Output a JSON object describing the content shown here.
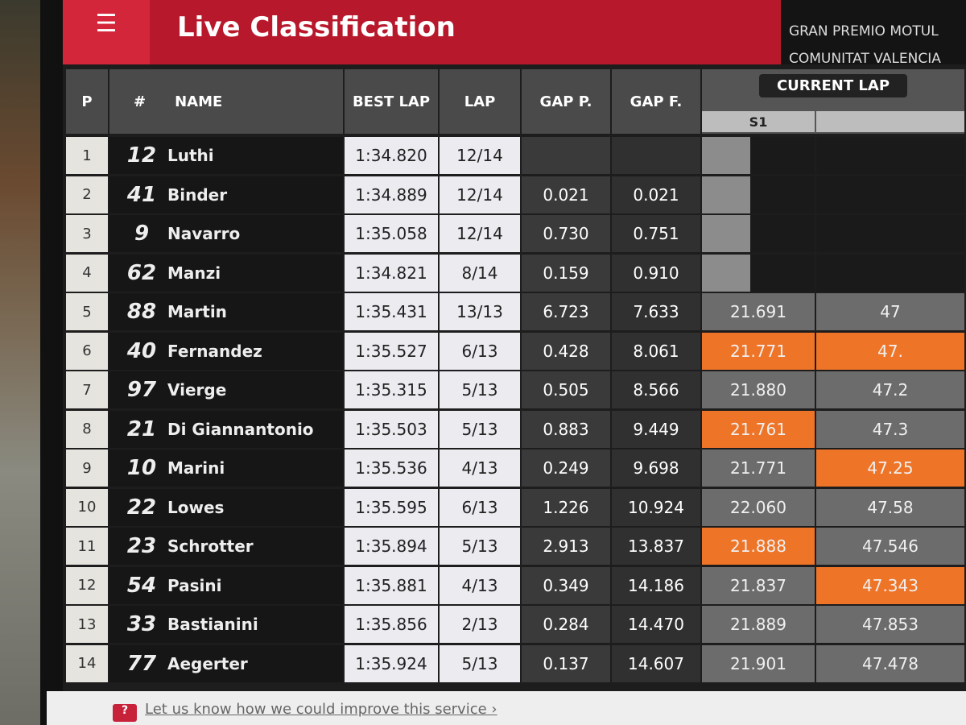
{
  "header": {
    "menu_icon": "hamburger-icon",
    "title": "Live Classification",
    "event_line1": "GRAN PREMIO MOTUL",
    "event_line2": "COMUNITAT VALENCIA"
  },
  "columns": {
    "p": "P",
    "num": "#",
    "name": "NAME",
    "best_lap": "BEST LAP",
    "lap": "LAP",
    "gap_p": "GAP P.",
    "gap_f": "GAP F.",
    "current_lap": "CURRENT LAP",
    "s1": "S1"
  },
  "colors": {
    "header_red": "#b8182b",
    "best_sector_orange": "#ee7428"
  },
  "rows": [
    {
      "p": "1",
      "num": "12",
      "name": "Luthi",
      "best": "1:34.820",
      "lap": "12/14",
      "gap_p": "",
      "gap_f": "",
      "s1": "",
      "s2": "",
      "s1_best": false,
      "s2_best": false
    },
    {
      "p": "2",
      "num": "41",
      "name": "Binder",
      "best": "1:34.889",
      "lap": "12/14",
      "gap_p": "0.021",
      "gap_f": "0.021",
      "s1": "",
      "s2": "",
      "s1_best": false,
      "s2_best": false
    },
    {
      "p": "3",
      "num": "9",
      "name": "Navarro",
      "best": "1:35.058",
      "lap": "12/14",
      "gap_p": "0.730",
      "gap_f": "0.751",
      "s1": "",
      "s2": "",
      "s1_best": false,
      "s2_best": false
    },
    {
      "p": "4",
      "num": "62",
      "name": "Manzi",
      "best": "1:34.821",
      "lap": "8/14",
      "gap_p": "0.159",
      "gap_f": "0.910",
      "s1": "",
      "s2": "",
      "s1_best": false,
      "s2_best": false
    },
    {
      "p": "5",
      "num": "88",
      "name": "Martin",
      "best": "1:35.431",
      "lap": "13/13",
      "gap_p": "6.723",
      "gap_f": "7.633",
      "s1": "21.691",
      "s2": "47",
      "s1_best": false,
      "s2_best": false
    },
    {
      "p": "6",
      "num": "40",
      "name": "Fernandez",
      "best": "1:35.527",
      "lap": "6/13",
      "gap_p": "0.428",
      "gap_f": "8.061",
      "s1": "21.771",
      "s2": "47.",
      "s1_best": true,
      "s2_best": true
    },
    {
      "p": "7",
      "num": "97",
      "name": "Vierge",
      "best": "1:35.315",
      "lap": "5/13",
      "gap_p": "0.505",
      "gap_f": "8.566",
      "s1": "21.880",
      "s2": "47.2",
      "s1_best": false,
      "s2_best": false
    },
    {
      "p": "8",
      "num": "21",
      "name": "Di Giannantonio",
      "best": "1:35.503",
      "lap": "5/13",
      "gap_p": "0.883",
      "gap_f": "9.449",
      "s1": "21.761",
      "s2": "47.3",
      "s1_best": true,
      "s2_best": false
    },
    {
      "p": "9",
      "num": "10",
      "name": "Marini",
      "best": "1:35.536",
      "lap": "4/13",
      "gap_p": "0.249",
      "gap_f": "9.698",
      "s1": "21.771",
      "s2": "47.25",
      "s1_best": false,
      "s2_best": true
    },
    {
      "p": "10",
      "num": "22",
      "name": "Lowes",
      "best": "1:35.595",
      "lap": "6/13",
      "gap_p": "1.226",
      "gap_f": "10.924",
      "s1": "22.060",
      "s2": "47.58",
      "s1_best": false,
      "s2_best": false
    },
    {
      "p": "11",
      "num": "23",
      "name": "Schrotter",
      "best": "1:35.894",
      "lap": "5/13",
      "gap_p": "2.913",
      "gap_f": "13.837",
      "s1": "21.888",
      "s2": "47.546",
      "s1_best": true,
      "s2_best": false
    },
    {
      "p": "12",
      "num": "54",
      "name": "Pasini",
      "best": "1:35.881",
      "lap": "4/13",
      "gap_p": "0.349",
      "gap_f": "14.186",
      "s1": "21.837",
      "s2": "47.343",
      "s1_best": false,
      "s2_best": true
    },
    {
      "p": "13",
      "num": "33",
      "name": "Bastianini",
      "best": "1:35.856",
      "lap": "2/13",
      "gap_p": "0.284",
      "gap_f": "14.470",
      "s1": "21.889",
      "s2": "47.853",
      "s1_best": false,
      "s2_best": false
    },
    {
      "p": "14",
      "num": "77",
      "name": "Aegerter",
      "best": "1:35.924",
      "lap": "5/13",
      "gap_p": "0.137",
      "gap_f": "14.607",
      "s1": "21.901",
      "s2": "47.478",
      "s1_best": false,
      "s2_best": false
    }
  ],
  "footer": {
    "feedback_icon": "question-bubble-icon",
    "feedback_link": "Let us know how we could improve this service ›"
  }
}
